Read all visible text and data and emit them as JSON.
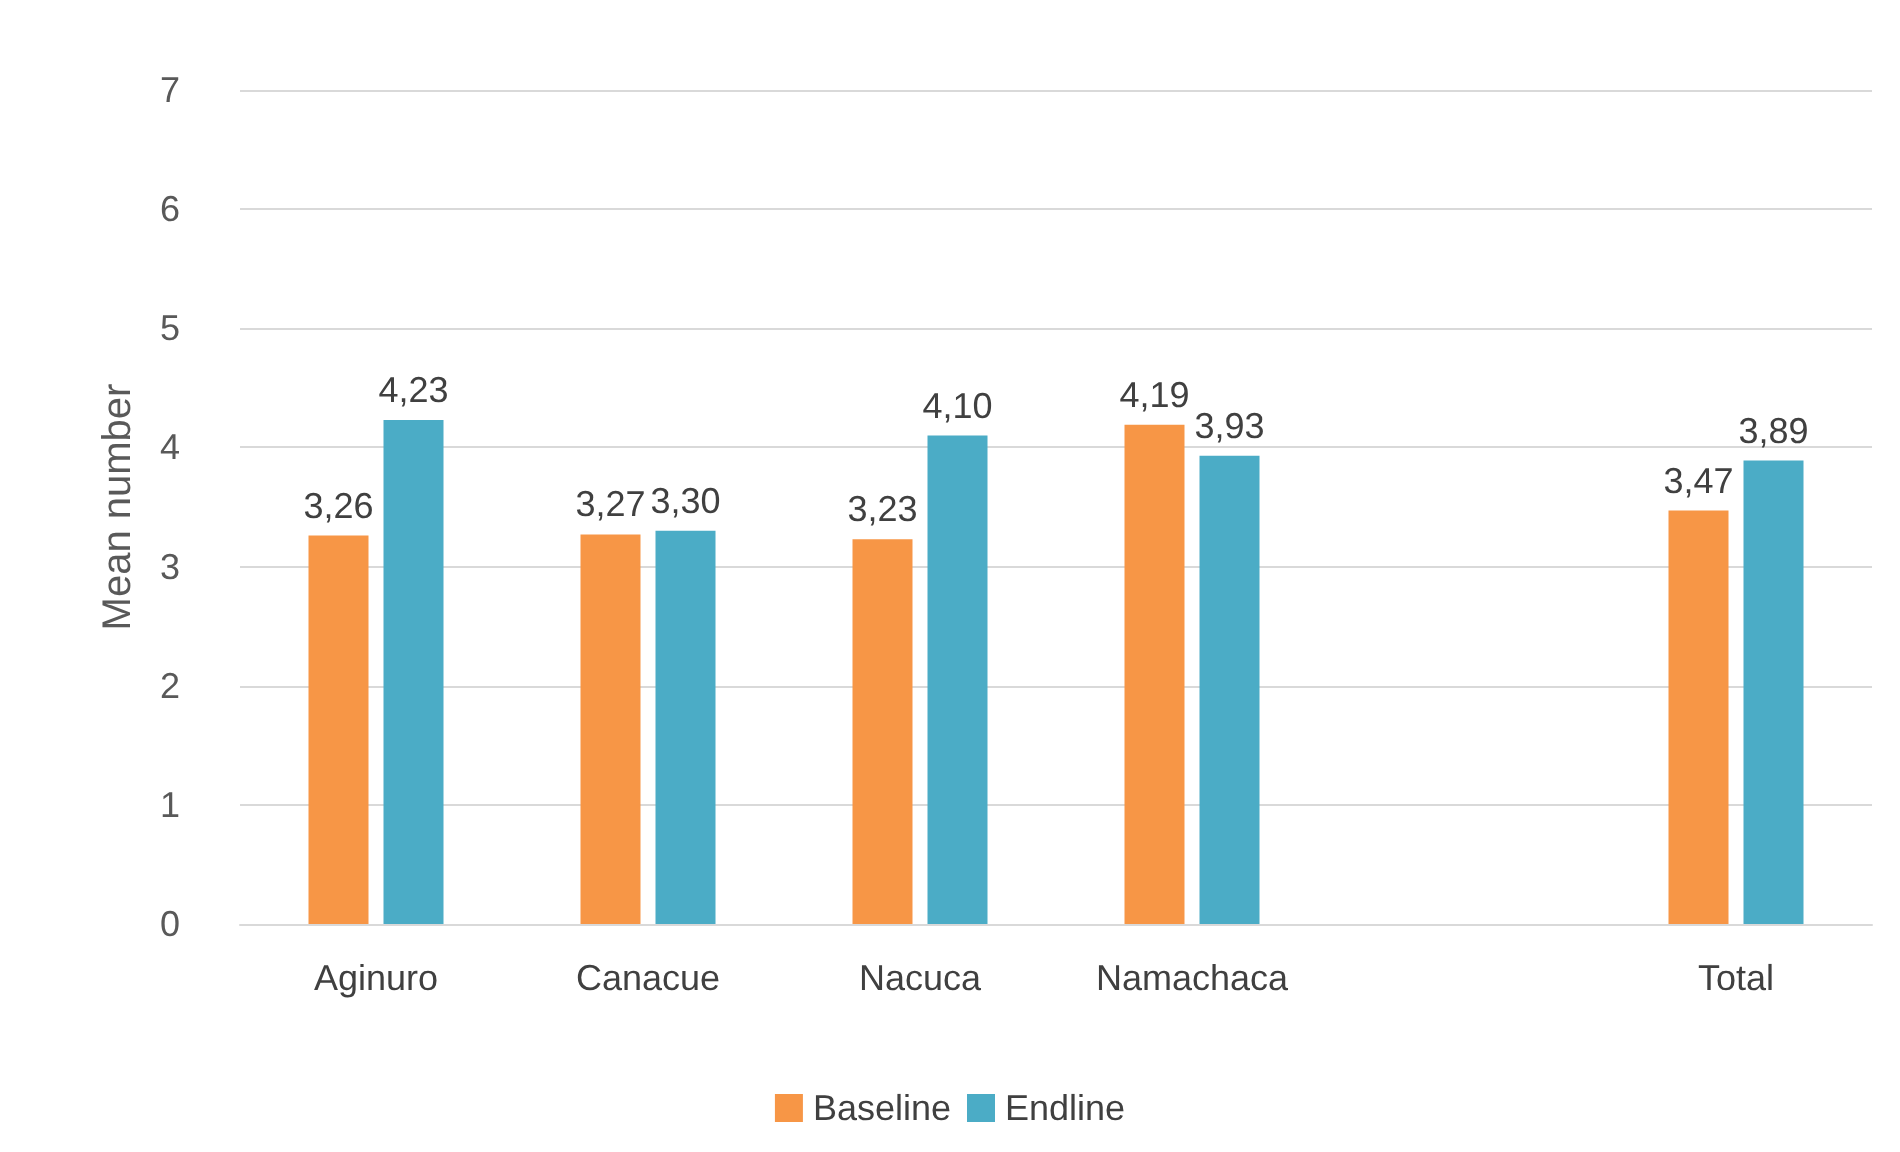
{
  "chart_data": {
    "type": "bar",
    "ylabel": "Mean number",
    "categories": [
      "Aginuro",
      "Canacue",
      "Nacuca",
      "Namachaca",
      null,
      "Total"
    ],
    "series": [
      {
        "name": "Baseline",
        "color": "#f79646",
        "values": [
          3.26,
          3.27,
          3.23,
          4.19,
          null,
          3.47
        ],
        "value_labels": [
          "3,26",
          "3,27",
          "3,23",
          "4,19",
          null,
          "3,47"
        ]
      },
      {
        "name": "Endline",
        "color": "#4bacc6",
        "values": [
          4.23,
          3.3,
          4.1,
          3.93,
          null,
          3.89
        ],
        "value_labels": [
          "4,23",
          "3,30",
          "4,10",
          "3,93",
          null,
          "3,89"
        ]
      }
    ],
    "ylim": [
      0,
      7
    ],
    "yticks": [
      0,
      1,
      2,
      3,
      4,
      5,
      6,
      7
    ],
    "grid": "y",
    "legend": "bottom"
  }
}
